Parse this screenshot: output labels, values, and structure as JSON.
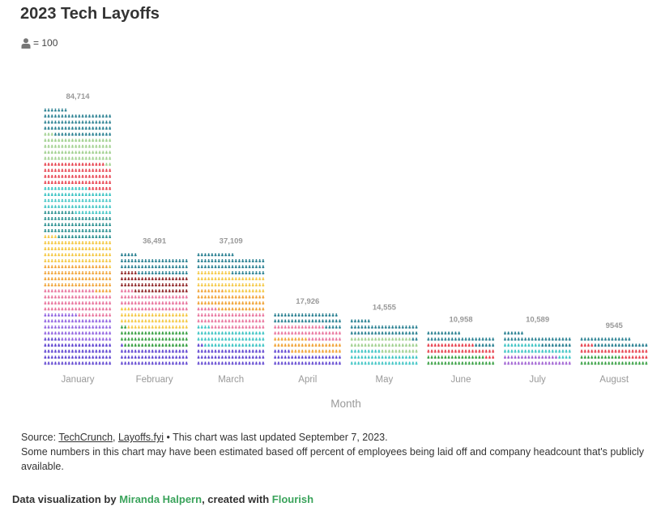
{
  "page": {
    "title": "2023 Tech Layoffs",
    "legend_text": "= 100",
    "legend_icon": "person-icon"
  },
  "chart_data": {
    "type": "bar",
    "subtype": "isotype-waffle",
    "unit": 100,
    "title": "2023 Tech Layoffs",
    "xlabel": "Month",
    "ylabel": "",
    "categories": [
      "January",
      "February",
      "March",
      "April",
      "May",
      "June",
      "July",
      "August"
    ],
    "values": [
      84714,
      36491,
      37109,
      17926,
      14555,
      10958,
      10589,
      9545
    ],
    "value_labels": [
      "84,714",
      "36,491",
      "37,109",
      "17,926",
      "14,555",
      "10,958",
      "10,589",
      "9545"
    ],
    "grid": false,
    "stack_colors": {
      "January": [
        "#5a3fcf",
        "#8c5ee0",
        "#e8709a",
        "#f0a030",
        "#f4c63d",
        "#1e8a8a",
        "#36c2c2",
        "#e63946",
        "#9ecf8c",
        "#1f7a8c"
      ],
      "February": [
        "#5a3fcf",
        "#2e9b3a",
        "#f4c63d",
        "#e8709a",
        "#8a1c1c",
        "#1f7a8c"
      ],
      "March": [
        "#5a3fcf",
        "#36c2c2",
        "#e8709a",
        "#f0a030",
        "#f4c63d",
        "#1f7a8c"
      ],
      "April": [
        "#5a3fcf",
        "#f0a030",
        "#e8709a",
        "#1f7a8c"
      ],
      "May": [
        "#36c2c2",
        "#9ecf8c",
        "#1f7a8c"
      ],
      "June": [
        "#2e9b3a",
        "#e63946",
        "#1f7a8c"
      ],
      "July": [
        "#9b59d0",
        "#36c2c2",
        "#1f7a8c"
      ],
      "August": [
        "#2e9b3a",
        "#e63946",
        "#1f7a8c"
      ]
    }
  },
  "footer": {
    "source_prefix": "Source: ",
    "source_link1": "TechCrunch",
    "source_sep": ", ",
    "source_link2": "Layoffs.fyi",
    "source_suffix": " • This chart was last updated September 7, 2023.",
    "note": "Some numbers in this chart may have been estimated based off percent of employees being laid off and company headcount that's publicly available."
  },
  "credit": {
    "prefix": "Data visualization by ",
    "author": "Miranda Halpern",
    "middle": ", created with ",
    "tool": "Flourish"
  }
}
